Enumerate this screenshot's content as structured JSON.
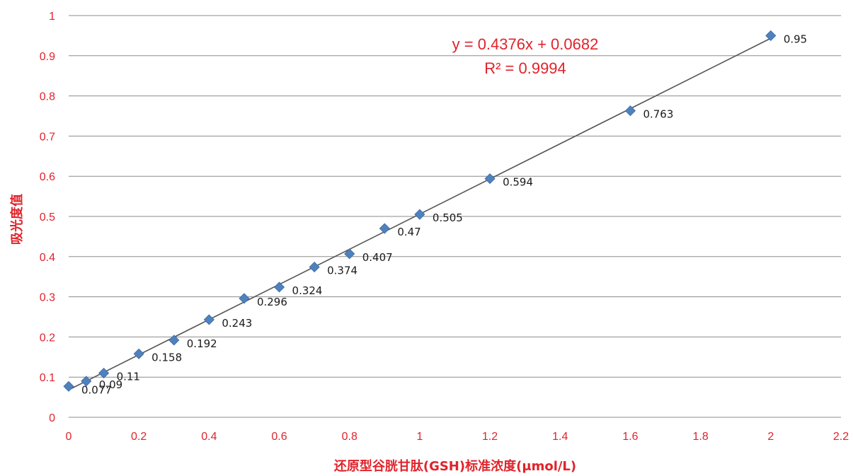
{
  "chart_data": {
    "type": "scatter",
    "xlabel": "还原型谷胱甘肽(GSH)标准浓度(μmol/L)",
    "ylabel": "吸光度值",
    "xlim": [
      0,
      2.2
    ],
    "ylim": [
      0,
      1
    ],
    "x_ticks": [
      "0",
      "0.2",
      "0.4",
      "0.6",
      "0.8",
      "1",
      "1.2",
      "1.4",
      "1.6",
      "1.8",
      "2",
      "2.2"
    ],
    "y_ticks": [
      "0",
      "0.1",
      "0.2",
      "0.3",
      "0.4",
      "0.5",
      "0.6",
      "0.7",
      "0.8",
      "0.9",
      "1"
    ],
    "grid": "horizontal",
    "series": [
      {
        "marker": "diamond",
        "color": "#4f81bd",
        "points": [
          {
            "x": 0,
            "y": 0.077,
            "label": "0.077"
          },
          {
            "x": 0.05,
            "y": 0.09,
            "label": "0.09"
          },
          {
            "x": 0.1,
            "y": 0.11,
            "label": "0.11"
          },
          {
            "x": 0.2,
            "y": 0.158,
            "label": "0.158"
          },
          {
            "x": 0.3,
            "y": 0.192,
            "label": "0.192"
          },
          {
            "x": 0.4,
            "y": 0.243,
            "label": "0.243"
          },
          {
            "x": 0.5,
            "y": 0.296,
            "label": "0.296"
          },
          {
            "x": 0.6,
            "y": 0.324,
            "label": "0.324"
          },
          {
            "x": 0.7,
            "y": 0.374,
            "label": "0.374"
          },
          {
            "x": 0.8,
            "y": 0.407,
            "label": "0.407"
          },
          {
            "x": 0.9,
            "y": 0.47,
            "label": "0.47"
          },
          {
            "x": 1.0,
            "y": 0.505,
            "label": "0.505"
          },
          {
            "x": 1.2,
            "y": 0.594,
            "label": "0.594"
          },
          {
            "x": 1.6,
            "y": 0.763,
            "label": "0.763"
          },
          {
            "x": 2.0,
            "y": 0.95,
            "label": "0.95"
          }
        ]
      }
    ],
    "trendline": {
      "slope": 0.4376,
      "intercept": 0.0682,
      "x_range": [
        0,
        2.0
      ],
      "color": "#555555",
      "equation": "y = 0.4376x + 0.0682",
      "r_squared": "R² = 0.9994"
    }
  }
}
